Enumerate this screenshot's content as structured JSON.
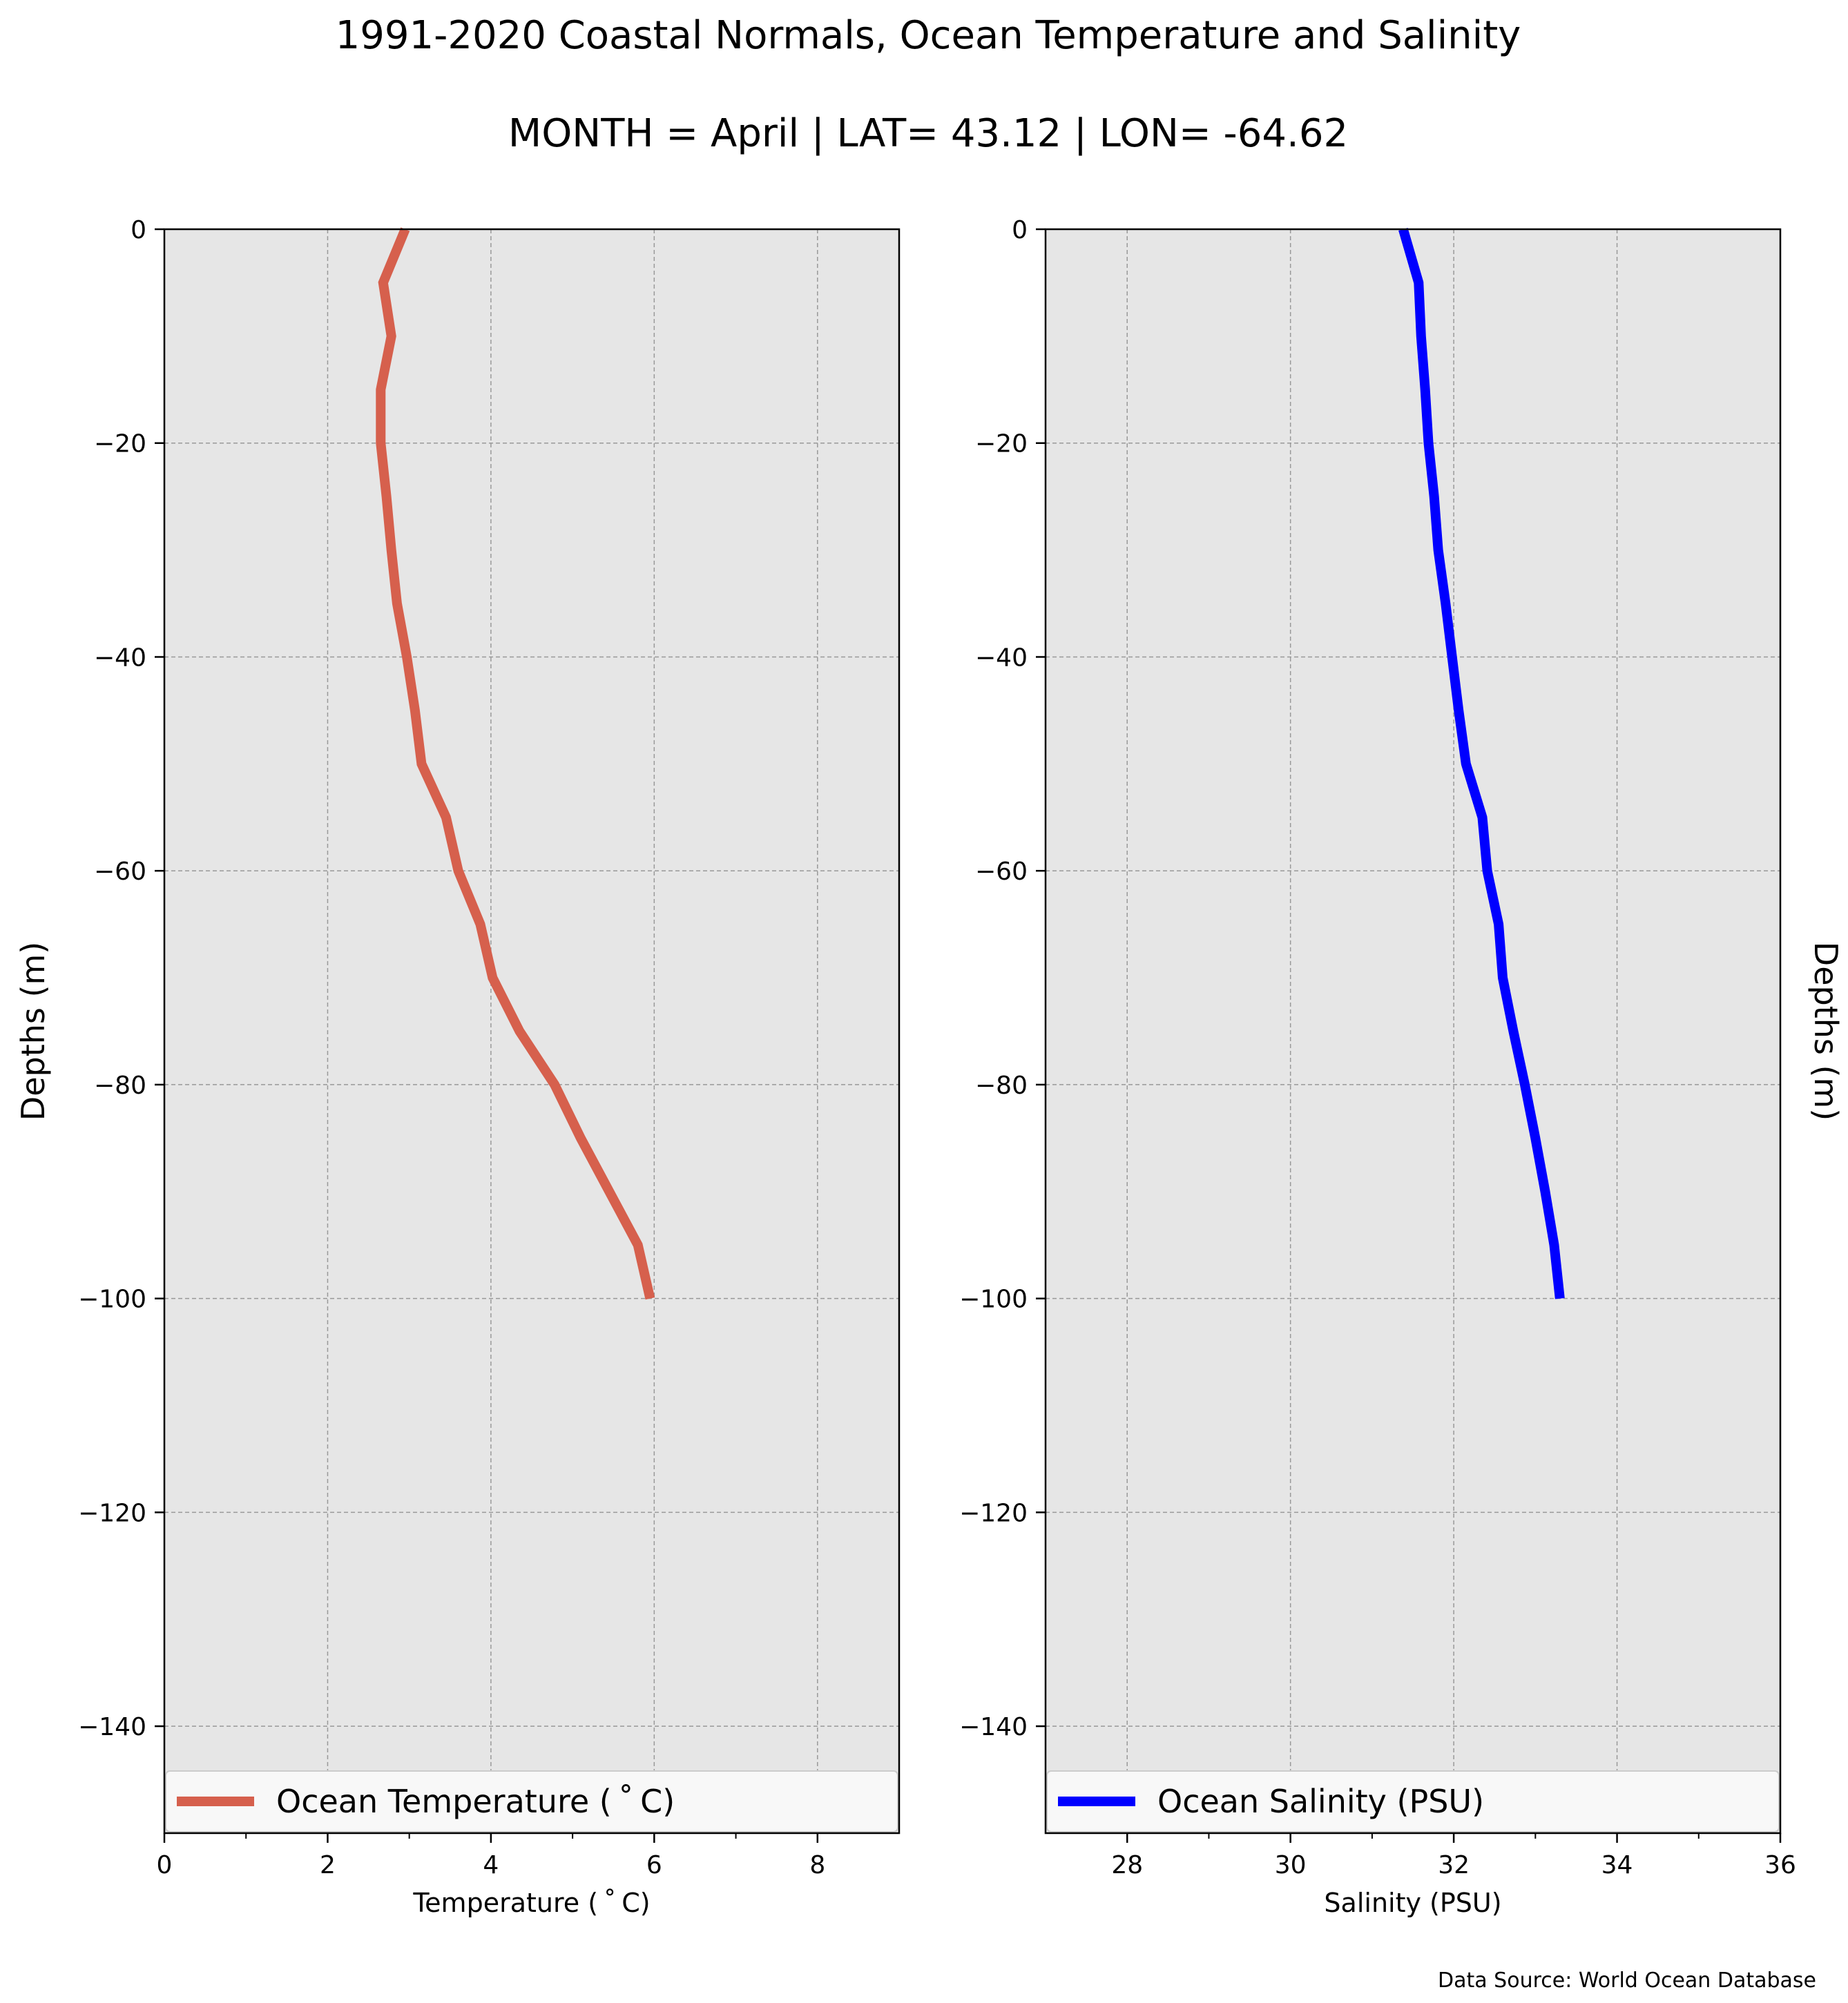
{
  "figure": {
    "title": "1991-2020 Coastal Normals, Ocean Temperature and Salinity",
    "subtitle": "MONTH = April | LAT= 43.12 | LON= -64.62",
    "source_note": "Data Source: World Ocean Database",
    "background": "#e6e6e6",
    "grid_color": "#999999"
  },
  "chart_data": [
    {
      "type": "line",
      "xlabel": "Temperature ($^\\circ$C)",
      "xlabel_display": "Temperature ( ˚ C)",
      "ylabel": "Depths (m)",
      "ylabel_position": "left",
      "xlim": [
        0,
        9
      ],
      "ylim": [
        -150,
        0
      ],
      "xticks": [
        0,
        2,
        4,
        6,
        8
      ],
      "xtick_labels": [
        "0",
        "2",
        "4",
        "6",
        "8"
      ],
      "yticks": [
        0,
        -20,
        -40,
        -60,
        -80,
        -100,
        -120,
        -140
      ],
      "ytick_labels": [
        "0",
        "−20",
        "−40",
        "−60",
        "−80",
        "−100",
        "−120",
        "−140"
      ],
      "grid": true,
      "legend_position": "bottom",
      "series": [
        {
          "name": "Ocean Temperature ( ˚ C)",
          "color": "#d6604d",
          "x": [
            2.95,
            2.68,
            2.78,
            2.65,
            2.65,
            2.72,
            2.78,
            2.85,
            2.97,
            3.07,
            3.15,
            3.45,
            3.6,
            3.87,
            4.02,
            4.35,
            4.78,
            5.1,
            5.45,
            5.8,
            5.95
          ],
          "y": [
            0,
            -5,
            -10,
            -15,
            -20,
            -25,
            -30,
            -35,
            -40,
            -45,
            -50,
            -55,
            -60,
            -65,
            -70,
            -75,
            -80,
            -85,
            -90,
            -95,
            -100
          ]
        }
      ]
    },
    {
      "type": "line",
      "xlabel": "Salinity (PSU)",
      "ylabel": "Depths (m)",
      "ylabel_position": "right",
      "xlim": [
        27,
        36
      ],
      "ylim": [
        -150,
        0
      ],
      "xticks": [
        28,
        30,
        32,
        34,
        36
      ],
      "xtick_labels": [
        "28",
        "30",
        "32",
        "34",
        "36"
      ],
      "yticks": [
        0,
        -20,
        -40,
        -60,
        -80,
        -100,
        -120,
        -140
      ],
      "ytick_labels": [
        "0",
        "−20",
        "−40",
        "−60",
        "−80",
        "−100",
        "−120",
        "−140"
      ],
      "grid": true,
      "legend_position": "bottom",
      "series": [
        {
          "name": "Ocean Salinity (PSU)",
          "color": "#0000ff",
          "x": [
            31.38,
            31.57,
            31.6,
            31.65,
            31.69,
            31.76,
            31.81,
            31.9,
            31.98,
            32.06,
            32.15,
            32.35,
            32.41,
            32.55,
            32.6,
            32.73,
            32.87,
            33.0,
            33.12,
            33.23,
            33.3
          ],
          "y": [
            0,
            -5,
            -10,
            -15,
            -20,
            -25,
            -30,
            -35,
            -40,
            -45,
            -50,
            -55,
            -60,
            -65,
            -70,
            -75,
            -80,
            -85,
            -90,
            -95,
            -100
          ]
        }
      ]
    }
  ]
}
